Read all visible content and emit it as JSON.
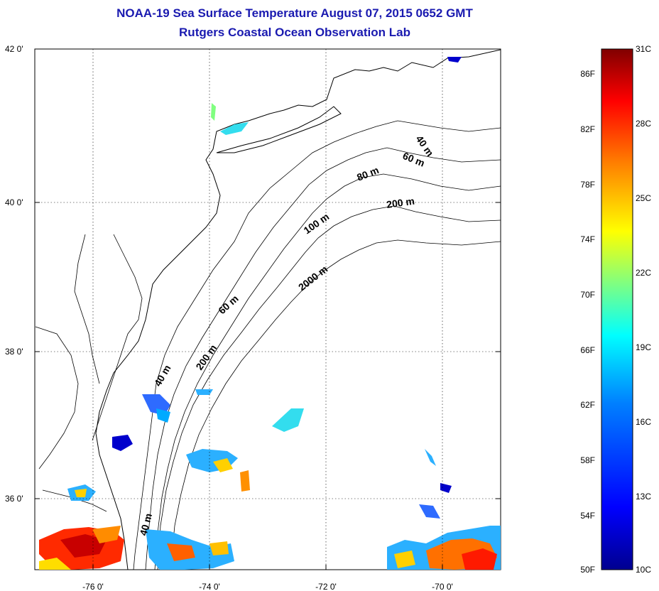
{
  "title": "NOAA-19 Sea Surface Temperature August 07, 2015 0652 GMT",
  "subtitle": "Rutgers Coastal Ocean Observation Lab",
  "lat_labels": [
    "42 0'",
    "40 0'",
    "38 0'",
    "36 0'"
  ],
  "lon_labels": [
    "-76 0'",
    "-74 0'",
    "-72 0'",
    "-70 0'"
  ],
  "contours": [
    "40 m",
    "60 m",
    "80 m",
    "200 m",
    "100 m",
    "2000 m",
    "60 m",
    "40 m",
    "200 m",
    "40 m"
  ],
  "colorbar": {
    "fahrenheit": [
      "86F",
      "82F",
      "78F",
      "74F",
      "70F",
      "66F",
      "62F",
      "58F",
      "54F",
      "50F"
    ],
    "celsius": [
      "31C",
      "28C",
      "25C",
      "22C",
      "19C",
      "16C",
      "13C",
      "10C"
    ],
    "colors": [
      "#00008f",
      "#0000ff",
      "#0080ff",
      "#00ffff",
      "#80ff80",
      "#ffff00",
      "#ff8000",
      "#ff0000",
      "#800000"
    ]
  },
  "colors": {
    "title": "#1a1ab0"
  }
}
